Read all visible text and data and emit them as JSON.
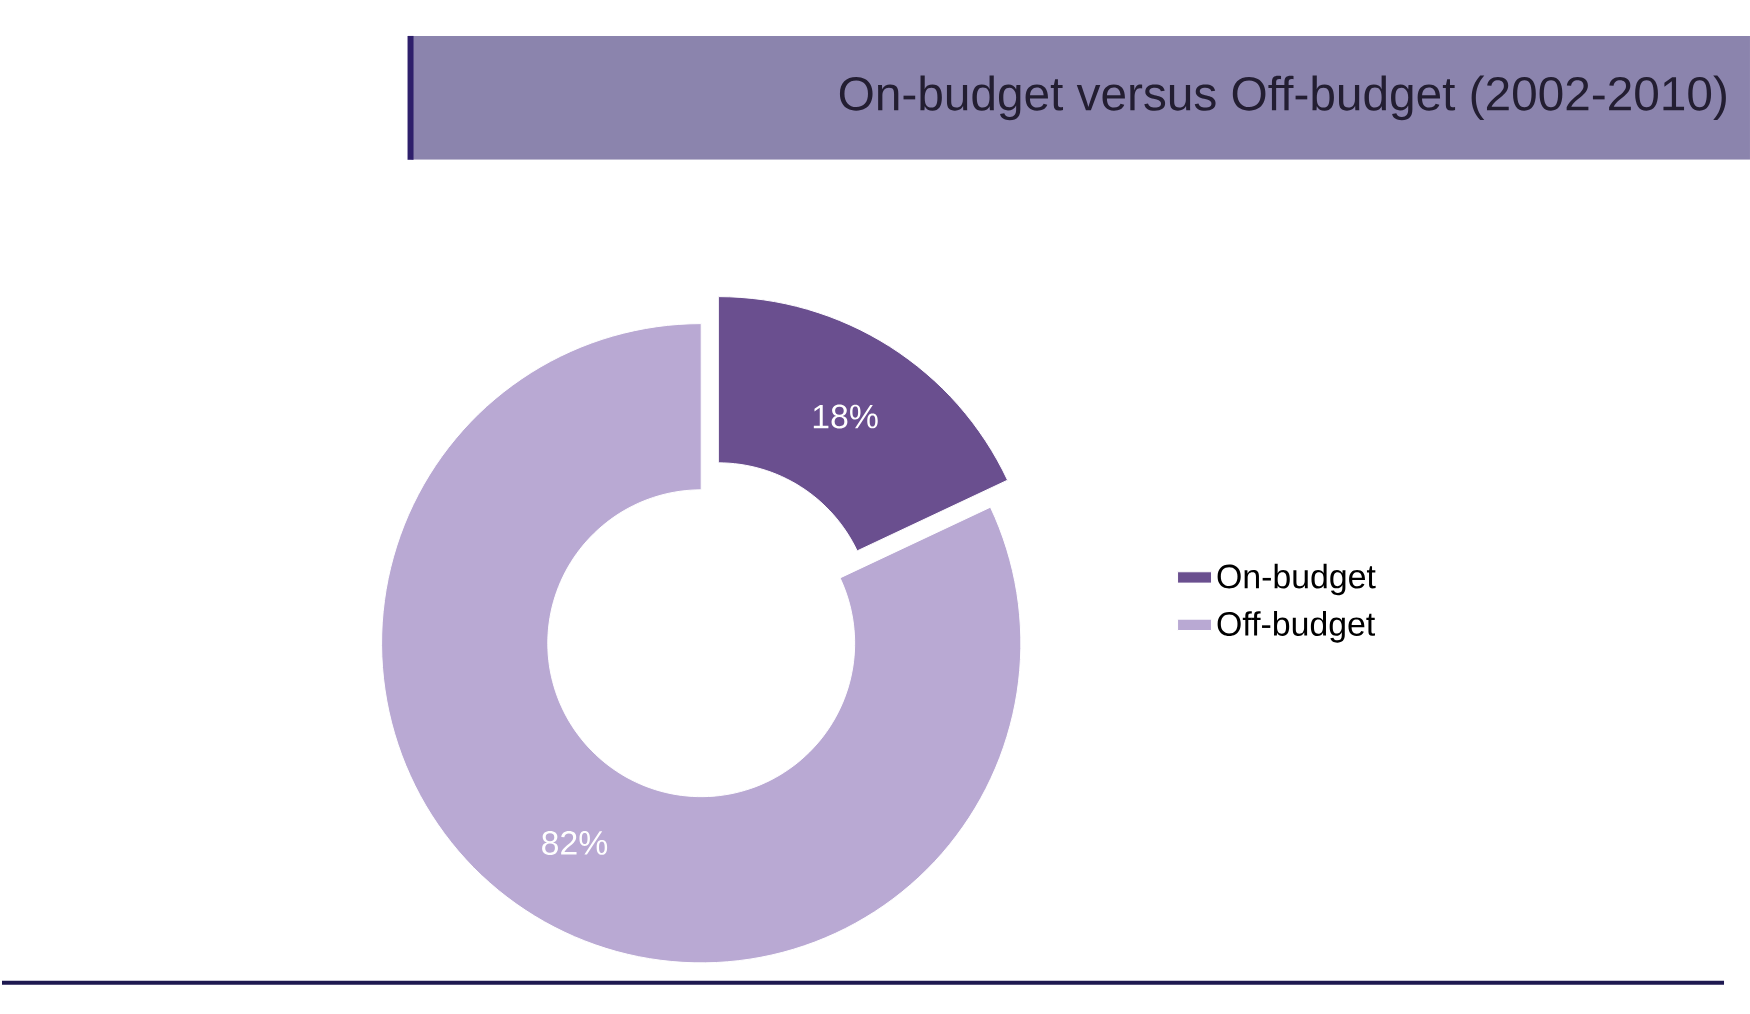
{
  "chart_data": {
    "type": "donut",
    "title": "On-budget versus Off-budget (2002-2010)",
    "categories": [
      "On-budget",
      "Off-budget"
    ],
    "values": [
      18,
      82
    ],
    "colors": [
      "#6a4f8f",
      "#b9a9d3"
    ],
    "value_labels": [
      "18%",
      "82%"
    ],
    "legend": "right"
  }
}
